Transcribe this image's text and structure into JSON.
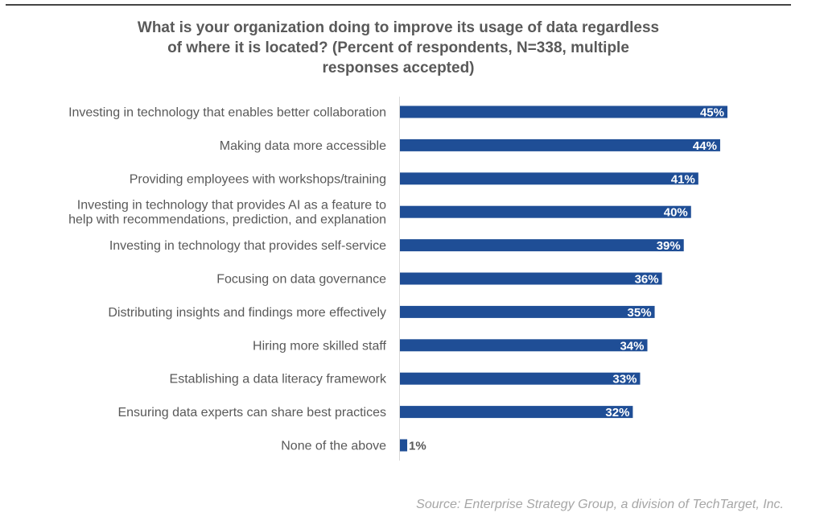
{
  "chart_data": {
    "type": "bar",
    "orientation": "horizontal",
    "title_lines": [
      "What is your organization doing to improve its usage of data regardless",
      "of where it is located? (Percent of respondents, N=338, multiple",
      "responses accepted)"
    ],
    "title": "What is your organization doing to improve its usage of data regardless of where it is located? (Percent of respondents, N=338, multiple responses accepted)",
    "xlabel": "",
    "ylabel": "",
    "unit": "%",
    "xlim": [
      0,
      45
    ],
    "grid": false,
    "legend": null,
    "bar_color": "#1f4e96",
    "label_inside_color": "#ffffff",
    "label_outside_color": "#595959",
    "categories": [
      [
        "Investing in technology that enables better collaboration"
      ],
      [
        "Making data more accessible"
      ],
      [
        "Providing employees with workshops/training"
      ],
      [
        "Investing in technology that provides AI as a feature to",
        "help with recommendations, prediction, and explanation"
      ],
      [
        "Investing in technology that provides self-service"
      ],
      [
        "Focusing on data governance"
      ],
      [
        "Distributing insights and findings more effectively"
      ],
      [
        "Hiring more skilled staff"
      ],
      [
        "Establishing a data literacy framework"
      ],
      [
        "Ensuring data experts can share best practices"
      ],
      [
        "None of the above"
      ]
    ],
    "values": [
      45,
      44,
      41,
      40,
      39,
      36,
      35,
      34,
      33,
      32,
      1
    ],
    "data_labels": [
      "45%",
      "44%",
      "41%",
      "40%",
      "39%",
      "36%",
      "35%",
      "34%",
      "33%",
      "32%",
      "1%"
    ]
  },
  "source": "Source: Enterprise Strategy Group, a division of TechTarget, Inc."
}
